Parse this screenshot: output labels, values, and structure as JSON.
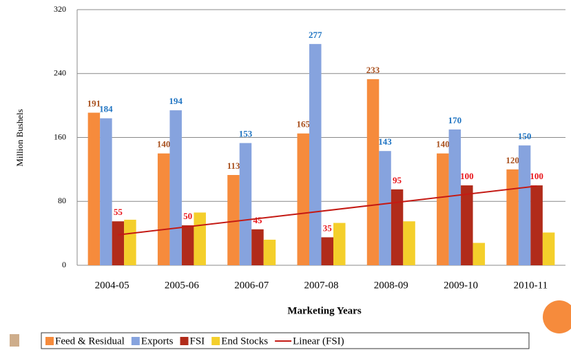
{
  "chart_data": {
    "type": "bar",
    "y_label": "Million Bushels",
    "x_label": "Marketing Years",
    "categories": [
      "2004-05",
      "2005-06",
      "2006-07",
      "2007-08",
      "2008-09",
      "2009-10",
      "2010-11"
    ],
    "series": [
      {
        "name": "Feed & Residual",
        "color": "#f68b3c",
        "label_color": "#a8501e",
        "values": [
          191,
          140,
          113,
          165,
          233,
          140,
          120
        ]
      },
      {
        "name": "Exports",
        "color": "#86a3de",
        "label_color": "#1f74c2",
        "values": [
          184,
          194,
          153,
          277,
          143,
          170,
          150
        ]
      },
      {
        "name": "FSI",
        "color": "#b12b1a",
        "label_color": "#e8151b",
        "values": [
          55,
          50,
          45,
          35,
          95,
          100,
          100
        ]
      },
      {
        "name": "End Stocks",
        "color": "#f4cf2b",
        "values": [
          57,
          66,
          32,
          53,
          55,
          28,
          41
        ]
      }
    ],
    "trendline": {
      "name": "Linear (FSI)",
      "source": "FSI",
      "color": "#c41a14"
    },
    "ylim": [
      0,
      320
    ],
    "yticks": [
      0,
      80,
      160,
      240,
      320
    ],
    "grid": true
  }
}
